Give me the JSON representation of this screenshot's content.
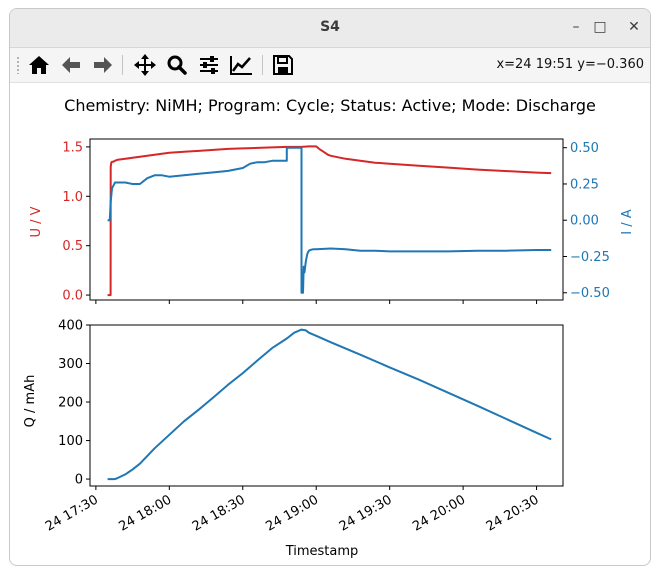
{
  "window": {
    "title": "S4"
  },
  "toolbar": {
    "buttons": [
      "home-icon",
      "back-icon",
      "forward-icon",
      "pan-icon",
      "zoom-icon",
      "configure-subplots-icon",
      "edit-axis-icon",
      "save-icon"
    ],
    "coords": "x=24 19:51 y=−0.360"
  },
  "chart_data": [
    {
      "type": "line",
      "title": "Chemistry: NiMH; Program: Cycle; Status: Active; Mode: Discharge",
      "xlabel": "",
      "ylabel": "U / V",
      "ylabel_right": "I / A",
      "xlim": [
        -0.04,
        3.18
      ],
      "ylim": [
        -0.05,
        1.58
      ],
      "ylim_right": [
        -0.55,
        0.56
      ],
      "yticks": [
        "0.0",
        "0.5",
        "1.0",
        "1.5"
      ],
      "yticks_right": [
        "−0.50",
        "−0.25",
        "0.00",
        "0.25",
        "0.50"
      ],
      "colors": {
        "U": "#d62728",
        "I": "#1f77b4"
      },
      "series": [
        {
          "axis": "left",
          "x": [
            0.08,
            0.09,
            0.095,
            0.1,
            0.101,
            0.105,
            0.11,
            0.12,
            0.13,
            0.15,
            0.2,
            0.25,
            0.3,
            0.4,
            0.5,
            0.6,
            0.7,
            0.8,
            0.9,
            1.0,
            1.1,
            1.2,
            1.3,
            1.35,
            1.4,
            1.45,
            1.5,
            1.52,
            1.55,
            1.58,
            1.6,
            1.7,
            1.8,
            1.9,
            2.0,
            2.2,
            2.4,
            2.6,
            2.8,
            3.0,
            3.1
          ],
          "y": [
            0.0,
            0.0,
            0.0,
            0.0,
            1.3,
            1.34,
            1.35,
            1.35,
            1.36,
            1.37,
            1.38,
            1.39,
            1.4,
            1.42,
            1.44,
            1.45,
            1.46,
            1.47,
            1.48,
            1.485,
            1.49,
            1.495,
            1.5,
            1.5,
            1.5,
            1.505,
            1.505,
            1.48,
            1.45,
            1.42,
            1.41,
            1.38,
            1.36,
            1.34,
            1.33,
            1.31,
            1.29,
            1.27,
            1.255,
            1.24,
            1.235
          ]
        },
        {
          "axis": "right",
          "x": [
            0.08,
            0.09,
            0.095,
            0.1,
            0.105,
            0.11,
            0.12,
            0.13,
            0.15,
            0.2,
            0.25,
            0.3,
            0.35,
            0.4,
            0.45,
            0.5,
            0.6,
            0.7,
            0.8,
            0.9,
            1.0,
            1.05,
            1.1,
            1.15,
            1.2,
            1.25,
            1.28,
            1.3,
            1.3,
            1.32,
            1.35,
            1.38,
            1.4,
            1.4,
            1.41,
            1.415,
            1.42,
            1.43,
            1.44,
            1.45,
            1.46,
            1.48,
            1.5,
            1.6,
            1.7,
            1.8,
            1.9,
            2.0,
            2.2,
            2.4,
            2.6,
            2.8,
            3.0,
            3.1
          ],
          "y": [
            0.0,
            0.0,
            0.0,
            0.12,
            0.17,
            0.22,
            0.24,
            0.26,
            0.26,
            0.26,
            0.25,
            0.25,
            0.29,
            0.31,
            0.31,
            0.3,
            0.31,
            0.32,
            0.33,
            0.34,
            0.36,
            0.39,
            0.4,
            0.4,
            0.41,
            0.41,
            0.41,
            0.41,
            0.5,
            0.5,
            0.5,
            0.5,
            0.5,
            -0.5,
            -0.5,
            -0.32,
            -0.36,
            -0.28,
            -0.23,
            -0.21,
            -0.205,
            -0.2,
            -0.2,
            -0.195,
            -0.2,
            -0.21,
            -0.21,
            -0.215,
            -0.215,
            -0.215,
            -0.21,
            -0.21,
            -0.205,
            -0.205
          ]
        }
      ]
    },
    {
      "type": "line",
      "title": "",
      "xlabel": "Timestamp",
      "ylabel": "Q / mAh",
      "xlim": [
        -0.04,
        3.18
      ],
      "ylim": [
        -18,
        400
      ],
      "yticks": [
        "0",
        "100",
        "200",
        "300",
        "400"
      ],
      "xticks": [
        0.0,
        0.5,
        1.0,
        1.5,
        2.0,
        2.5,
        3.0
      ],
      "xticklabels": [
        "24 17:30",
        "24 18:00",
        "24 18:30",
        "24 19:00",
        "24 19:30",
        "24 20:00",
        "24 20:30"
      ],
      "colors": {
        "Q": "#1f77b4"
      },
      "series": [
        {
          "x": [
            0.08,
            0.1,
            0.13,
            0.15,
            0.2,
            0.25,
            0.3,
            0.4,
            0.5,
            0.6,
            0.7,
            0.8,
            0.9,
            1.0,
            1.1,
            1.2,
            1.3,
            1.35,
            1.4,
            1.43,
            1.45,
            1.5,
            1.6,
            1.8,
            2.0,
            2.2,
            2.4,
            2.6,
            2.8,
            3.0,
            3.1
          ],
          "y": [
            0,
            0,
            0,
            3,
            12,
            25,
            40,
            80,
            115,
            150,
            180,
            212,
            245,
            275,
            308,
            340,
            365,
            380,
            388,
            386,
            380,
            372,
            355,
            323,
            290,
            258,
            224,
            190,
            155,
            120,
            103
          ]
        }
      ]
    }
  ]
}
